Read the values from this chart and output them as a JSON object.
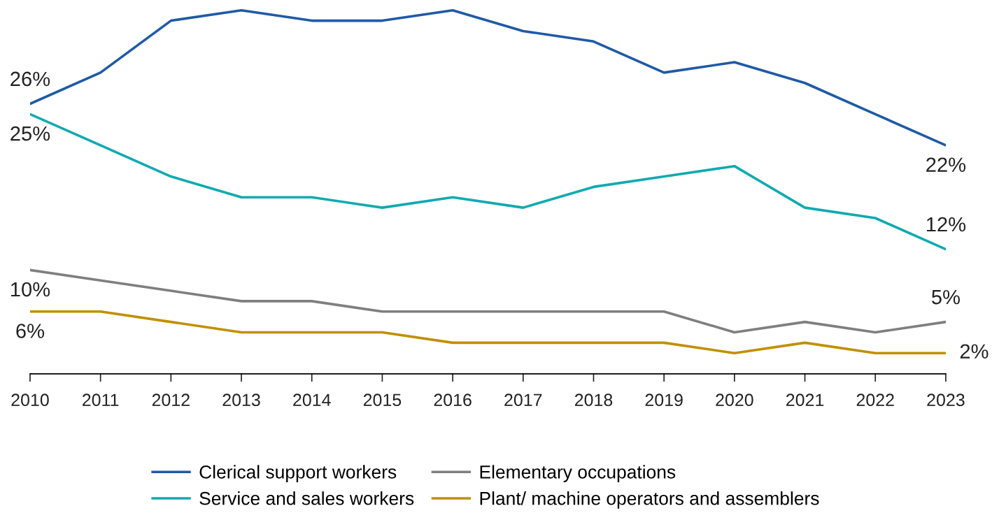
{
  "chart_data": {
    "type": "line",
    "categories": [
      "2010",
      "2011",
      "2012",
      "2013",
      "2014",
      "2015",
      "2016",
      "2017",
      "2018",
      "2019",
      "2020",
      "2021",
      "2022",
      "2023"
    ],
    "tick_labels": "x",
    "grid": false,
    "legend": "bottom",
    "marker": "none",
    "line_style": "solid",
    "series": [
      {
        "name": "Clerical support workers",
        "color": "#1f5aa6",
        "values": [
          26,
          29,
          34,
          35,
          34,
          34,
          35,
          33,
          32,
          29,
          30,
          28,
          25,
          22
        ],
        "value_labels": [
          "26%",
          null,
          null,
          null,
          null,
          null,
          null,
          null,
          null,
          null,
          null,
          null,
          null,
          "22%"
        ]
      },
      {
        "name": "Service and sales workers",
        "color": "#10aab0",
        "values": [
          25,
          22,
          19,
          17,
          17,
          16,
          17,
          16,
          18,
          19,
          20,
          16,
          15,
          12
        ],
        "value_labels": [
          "25%",
          null,
          null,
          null,
          null,
          null,
          null,
          null,
          null,
          null,
          null,
          null,
          null,
          "12%"
        ]
      },
      {
        "name": "Elementary occupations",
        "color": "#7f7f7f",
        "values": [
          10,
          9,
          8,
          7,
          7,
          6,
          6,
          6,
          6,
          6,
          4,
          5,
          4,
          5
        ],
        "value_labels": [
          "10%",
          null,
          null,
          null,
          null,
          null,
          null,
          null,
          null,
          null,
          null,
          null,
          null,
          "5%"
        ]
      },
      {
        "name": "Plant/ machine operators and assemblers",
        "color": "#c09000",
        "values": [
          6,
          6,
          5,
          4,
          4,
          4,
          3,
          3,
          3,
          3,
          2,
          3,
          2,
          2
        ],
        "value_labels": [
          "6%",
          null,
          null,
          null,
          null,
          null,
          null,
          null,
          null,
          null,
          null,
          null,
          null,
          "2%"
        ]
      }
    ]
  }
}
